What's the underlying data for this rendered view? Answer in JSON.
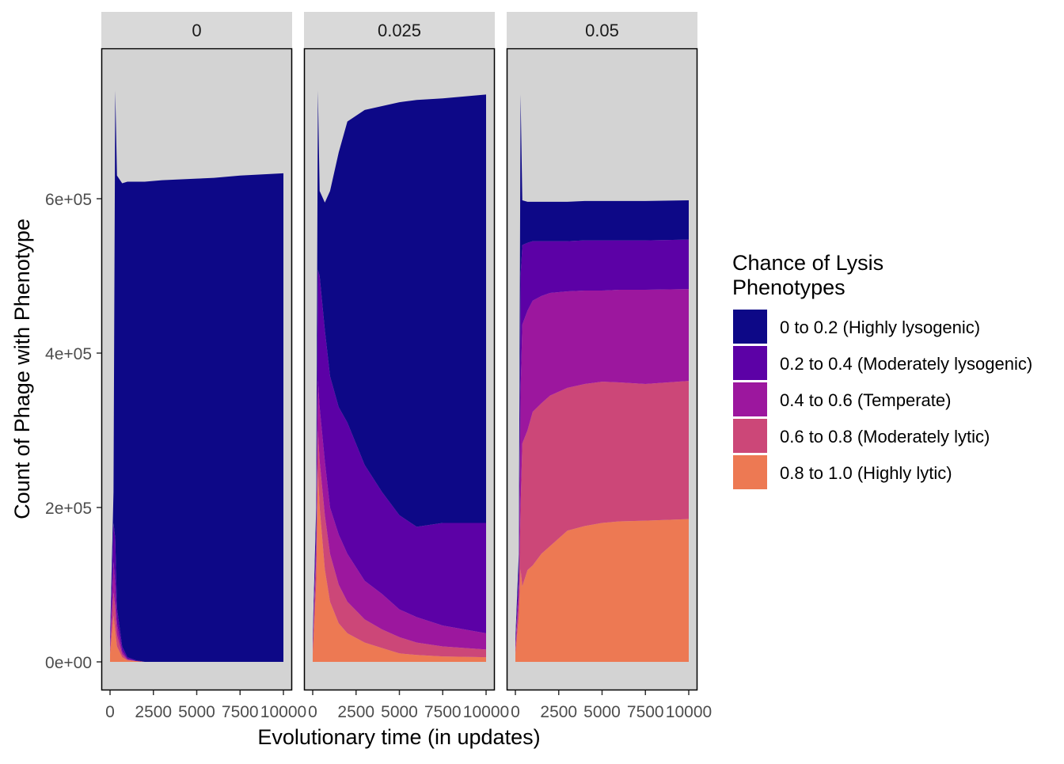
{
  "chart_data": {
    "type": "area",
    "stacked": true,
    "facet_variable_values": [
      "0",
      "0.025",
      "0.05"
    ],
    "xlabel": "Evolutionary time (in updates)",
    "ylabel": "Count of Phage with Phenotype",
    "xlim": [
      0,
      10000
    ],
    "ylim": [
      0,
      780000
    ],
    "x_ticks": [
      0,
      2500,
      5000,
      7500,
      10000
    ],
    "x_tick_labels": [
      "0",
      "2500",
      "5000",
      "7500",
      "10000"
    ],
    "y_ticks": [
      0,
      200000,
      400000,
      600000
    ],
    "y_tick_labels": [
      "0e+00",
      "2e+05",
      "4e+05",
      "6e+05"
    ],
    "legend": {
      "title": "Chance of Lysis\n Phenotypes",
      "placement": "right",
      "entries": [
        {
          "label": "0 to 0.2 (Highly lysogenic)",
          "color": "#0d0887"
        },
        {
          "label": "0.2 to 0.4 (Moderately lysogenic)",
          "color": "#5c01a6"
        },
        {
          "label": "0.4 to 0.6 (Temperate)",
          "color": "#9c179e"
        },
        {
          "label": "0.6 to 0.8 (Moderately lytic)",
          "color": "#cc4778"
        },
        {
          "label": "0.8 to 1.0 (Highly lytic)",
          "color": "#ed7953"
        }
      ]
    },
    "x": [
      0,
      200,
      300,
      400,
      700,
      1000,
      1500,
      2000,
      3000,
      4000,
      5000,
      6000,
      7500,
      10000
    ],
    "value_unit": "thousands of phage",
    "panels": [
      {
        "label": "0",
        "series": [
          {
            "name": "0 to 0.2 (Highly lysogenic)",
            "values": [
              5,
              40,
              580,
              560,
              600,
              616,
              620,
              622,
              624,
              625,
              626,
              627,
              630,
              633
            ]
          },
          {
            "name": "0.2 to 0.4 (Moderately lysogenic)",
            "values": [
              5,
              50,
              60,
              20,
              6,
              2,
              1,
              0,
              0,
              0,
              0,
              0,
              0,
              0
            ]
          },
          {
            "name": "0.4 to 0.6 (Temperate)",
            "values": [
              5,
              40,
              30,
              15,
              4,
              1,
              0,
              0,
              0,
              0,
              0,
              0,
              0,
              0
            ]
          },
          {
            "name": "0.6 to 0.8 (Moderately lytic)",
            "values": [
              5,
              30,
              30,
              15,
              4,
              1,
              0,
              0,
              0,
              0,
              0,
              0,
              0,
              0
            ]
          },
          {
            "name": "0.8 to 1.0 (Highly lytic)",
            "values": [
              10,
              60,
              40,
              20,
              6,
              2,
              1,
              0,
              0,
              0,
              0,
              0,
              0,
              0
            ]
          }
        ]
      },
      {
        "label": "0.025",
        "series": [
          {
            "name": "0 to 0.2 (Highly lysogenic)",
            "values": [
              5,
              20,
              232,
              110,
              165,
              240,
              330,
              390,
              460,
              500,
              535,
              553,
              550,
              555
            ]
          },
          {
            "name": "0.2 to 0.4 (Moderately lysogenic)",
            "values": [
              5,
              30,
              143,
              170,
              170,
              170,
              165,
              170,
              150,
              132,
              122,
              117,
              133,
              143
            ]
          },
          {
            "name": "0.4 to 0.6 (Temperate)",
            "values": [
              5,
              20,
              65,
              70,
              70,
              60,
              65,
              62,
              50,
              46,
              36,
              33,
              27,
              21
            ]
          },
          {
            "name": "0.6 to 0.8 (Moderately lytic)",
            "values": [
              5,
              30,
              50,
              60,
              70,
              62,
              50,
              41,
              30,
              24,
              21,
              16,
              13,
              10
            ]
          },
          {
            "name": "0.8 to 1.0 (Highly lytic)",
            "values": [
              10,
              100,
              250,
              200,
              120,
              78,
              50,
              37,
              25,
              18,
              11,
              9,
              7,
              6
            ]
          }
        ]
      },
      {
        "label": "0.05",
        "series": [
          {
            "name": "0 to 0.2 (Highly lysogenic)",
            "values": [
              5,
              20,
              235,
              58,
              53,
              51,
              51,
              51,
              51,
              51,
              51,
              51,
              51,
              51
            ]
          },
          {
            "name": "0.2 to 0.4 (Moderately lysogenic)",
            "values": [
              5,
              20,
              150,
              103,
              88,
              77,
              71,
              67,
              65,
              65,
              65,
              64,
              64,
              64
            ]
          },
          {
            "name": "0.4 to 0.6 (Temperate)",
            "values": [
              5,
              20,
              150,
              154,
              155,
              144,
              139,
              133,
              125,
              121,
              118,
              120,
              122,
              119
            ]
          },
          {
            "name": "0.6 to 0.8 (Moderately lytic)",
            "values": [
              5,
              20,
              80,
              185,
              181,
              199,
              195,
              195,
              185,
              184,
              183,
              180,
              177,
              179
            ]
          },
          {
            "name": "0.8 to 1.0 (Highly lytic)",
            "values": [
              10,
              60,
              120,
              98,
              119,
              125,
              140,
              150,
              170,
              176,
              180,
              182,
              183,
              185
            ]
          }
        ]
      }
    ]
  }
}
